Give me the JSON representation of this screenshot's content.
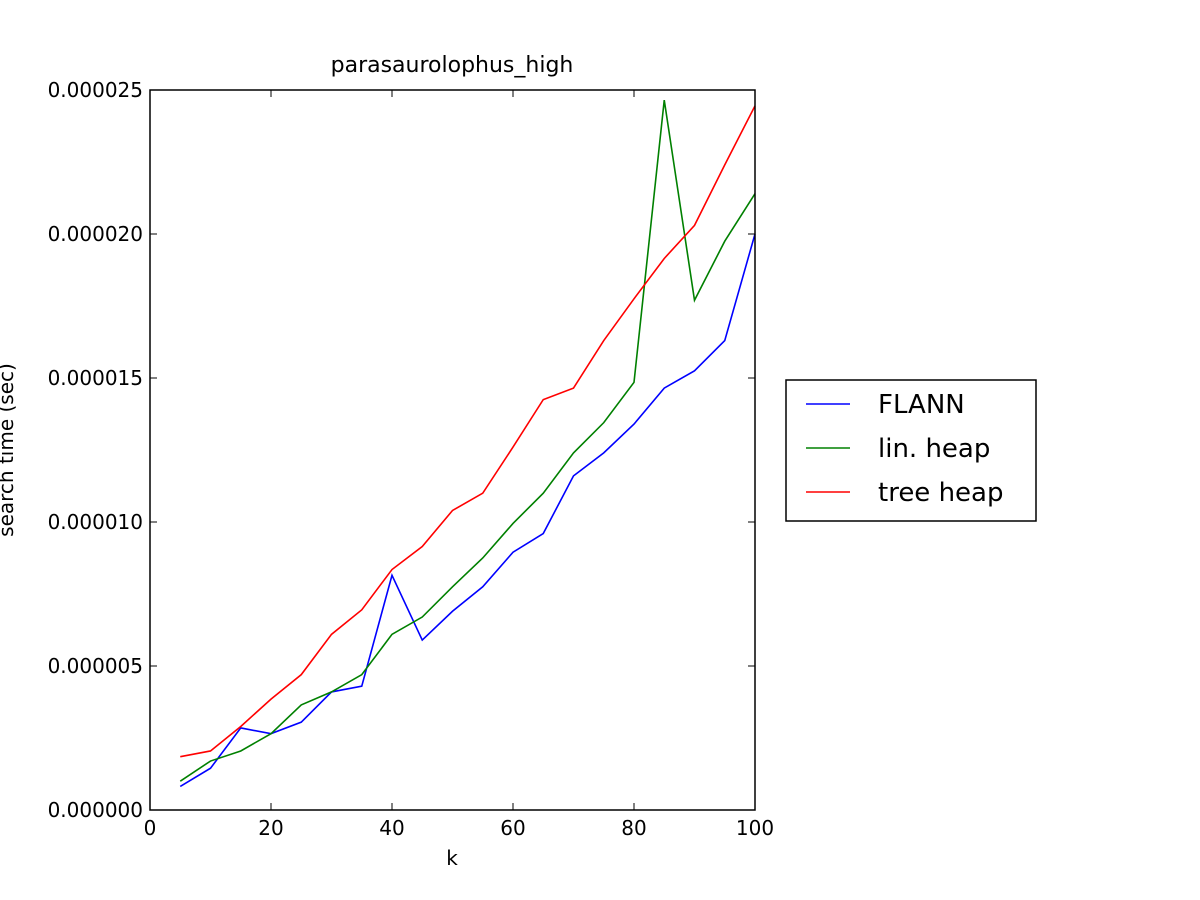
{
  "chart_data": {
    "type": "line",
    "title": "parasaurolophus_high",
    "xlabel": "k",
    "ylabel": "search time (sec)",
    "xlim": [
      0,
      100
    ],
    "ylim": [
      0,
      2.5e-05
    ],
    "xticks": [
      0,
      20,
      40,
      60,
      80,
      100
    ],
    "xtick_labels": [
      "0",
      "20",
      "40",
      "60",
      "80",
      "100"
    ],
    "yticks": [
      0,
      5e-06,
      1e-05,
      1.5e-05,
      2e-05,
      2.5e-05
    ],
    "ytick_labels": [
      "0.000000",
      "0.000005",
      "0.000010",
      "0.000015",
      "0.000020",
      "0.000025"
    ],
    "grid": false,
    "legend_position": "outside-right",
    "x": [
      5,
      10,
      15,
      20,
      25,
      30,
      35,
      40,
      45,
      50,
      55,
      60,
      65,
      70,
      75,
      80,
      85,
      90,
      95,
      100
    ],
    "series": [
      {
        "name": "FLANN",
        "color": "#0000ff",
        "values": [
          8.2e-07,
          1.45e-06,
          2.85e-06,
          2.65e-06,
          3.05e-06,
          4.1e-06,
          4.3e-06,
          8.15e-06,
          5.9e-06,
          6.9e-06,
          7.75e-06,
          8.95e-06,
          9.6e-06,
          1.16e-05,
          1.24e-05,
          1.34e-05,
          1.465e-05,
          1.525e-05,
          1.63e-05,
          2e-05
        ]
      },
      {
        "name": "lin. heap",
        "color": "#008000",
        "values": [
          1e-06,
          1.7e-06,
          2.05e-06,
          2.65e-06,
          3.65e-06,
          4.1e-06,
          4.7e-06,
          6.1e-06,
          6.7e-06,
          7.75e-06,
          8.75e-06,
          9.95e-06,
          1.1e-05,
          1.24e-05,
          1.345e-05,
          1.485e-05,
          2.465e-05,
          1.77e-05,
          1.975e-05,
          2.14e-05
        ]
      },
      {
        "name": "tree heap",
        "color": "#ff0000",
        "values": [
          1.85e-06,
          2.05e-06,
          2.9e-06,
          3.85e-06,
          4.7e-06,
          6.1e-06,
          6.95e-06,
          8.35e-06,
          9.15e-06,
          1.04e-05,
          1.1e-05,
          1.26e-05,
          1.425e-05,
          1.465e-05,
          1.63e-05,
          1.775e-05,
          1.915e-05,
          2.03e-05,
          2.24e-05,
          2.445e-05
        ]
      }
    ]
  }
}
